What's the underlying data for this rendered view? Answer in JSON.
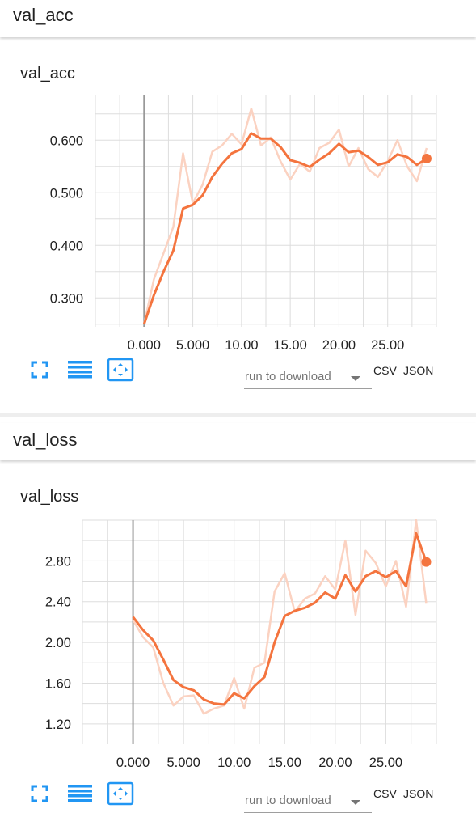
{
  "panels": [
    {
      "section_title": "val_acc",
      "chart_title": "val_acc",
      "download": {
        "placeholder": "run to download",
        "csv": "CSV",
        "json": "JSON"
      },
      "icons": [
        "fit-domain-icon",
        "toggle-log-scale-icon",
        "expand-chart-icon"
      ]
    },
    {
      "section_title": "val_loss",
      "chart_title": "val_loss",
      "download": {
        "placeholder": "run to download",
        "csv": "CSV",
        "json": "JSON"
      },
      "icons": [
        "fit-domain-icon",
        "toggle-log-scale-icon",
        "expand-chart-icon"
      ]
    }
  ],
  "colors": {
    "smoothed": "#f4743e",
    "raw": "#fbd2c1",
    "accent_icon": "#2196f3",
    "grid": "#dddddd",
    "zero_line": "#999999"
  },
  "chart_data": [
    {
      "type": "line",
      "title": "val_acc",
      "x_ticks": [
        "0.000",
        "5.000",
        "10.00",
        "15.00",
        "20.00",
        "25.00"
      ],
      "y_ticks": [
        "0.300",
        "0.400",
        "0.500",
        "0.600"
      ],
      "xlim": [
        -5,
        30
      ],
      "ylim": [
        0.245,
        0.685
      ],
      "grid": true,
      "series": [
        {
          "x": [
            0,
            1,
            2,
            3,
            4,
            5,
            6,
            7,
            8,
            9,
            10,
            11,
            12,
            13,
            14,
            15,
            16,
            17,
            18,
            19,
            20,
            21,
            22,
            23,
            24,
            25,
            26,
            27,
            28,
            29
          ],
          "values": [
            0.25,
            0.335,
            0.385,
            0.435,
            0.575,
            0.48,
            0.515,
            0.578,
            0.59,
            0.612,
            0.592,
            0.66,
            0.59,
            0.605,
            0.56,
            0.525,
            0.555,
            0.54,
            0.585,
            0.595,
            0.62,
            0.55,
            0.585,
            0.545,
            0.53,
            0.56,
            0.6,
            0.55,
            0.522,
            0.585
          ]
        },
        {
          "x": [
            0,
            1,
            2,
            3,
            4,
            5,
            6,
            7,
            8,
            9,
            10,
            11,
            12,
            13,
            14,
            15,
            16,
            17,
            18,
            19,
            20,
            21,
            22,
            23,
            24,
            25,
            26,
            27,
            28,
            29
          ],
          "values": [
            0.25,
            0.305,
            0.35,
            0.39,
            0.47,
            0.477,
            0.495,
            0.53,
            0.555,
            0.575,
            0.583,
            0.613,
            0.603,
            0.603,
            0.587,
            0.562,
            0.557,
            0.549,
            0.563,
            0.575,
            0.593,
            0.577,
            0.58,
            0.568,
            0.553,
            0.558,
            0.573,
            0.568,
            0.553,
            0.565
          ]
        }
      ]
    },
    {
      "type": "line",
      "title": "val_loss",
      "x_ticks": [
        "0.000",
        "5.000",
        "10.00",
        "15.00",
        "20.00",
        "25.00"
      ],
      "y_ticks": [
        "1.20",
        "1.60",
        "2.00",
        "2.40",
        "2.80"
      ],
      "xlim": [
        -5,
        30
      ],
      "ylim": [
        1.0,
        3.2
      ],
      "grid": true,
      "series": [
        {
          "x": [
            0,
            1,
            2,
            3,
            4,
            5,
            6,
            7,
            8,
            9,
            10,
            11,
            12,
            13,
            14,
            15,
            16,
            17,
            18,
            19,
            20,
            21,
            22,
            23,
            24,
            25,
            26,
            27,
            28,
            29
          ],
          "values": [
            2.22,
            2.05,
            1.95,
            1.6,
            1.38,
            1.47,
            1.48,
            1.3,
            1.35,
            1.38,
            1.65,
            1.35,
            1.75,
            1.8,
            2.5,
            2.68,
            2.3,
            2.43,
            2.48,
            2.65,
            2.52,
            3.0,
            2.27,
            2.9,
            2.78,
            2.55,
            2.8,
            2.35,
            3.2,
            2.38
          ]
        },
        {
          "x": [
            0,
            1,
            2,
            3,
            4,
            5,
            6,
            7,
            8,
            9,
            10,
            11,
            12,
            13,
            14,
            15,
            16,
            17,
            18,
            19,
            20,
            21,
            22,
            23,
            24,
            25,
            26,
            27,
            28,
            29
          ],
          "values": [
            2.25,
            2.12,
            2.02,
            1.83,
            1.63,
            1.56,
            1.53,
            1.44,
            1.4,
            1.39,
            1.5,
            1.45,
            1.57,
            1.66,
            2.0,
            2.26,
            2.31,
            2.34,
            2.39,
            2.49,
            2.43,
            2.66,
            2.5,
            2.65,
            2.7,
            2.64,
            2.7,
            2.55,
            3.07,
            2.79
          ]
        }
      ]
    }
  ]
}
